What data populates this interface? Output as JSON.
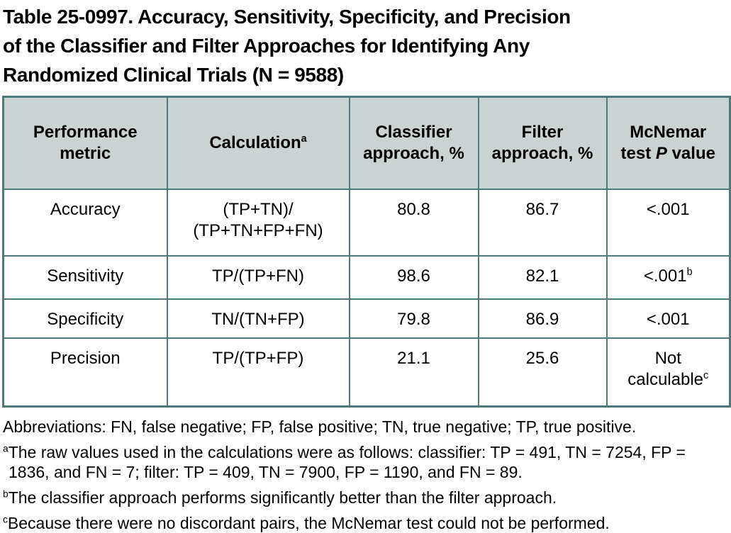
{
  "colors": {
    "border": "#4d7b7d",
    "header_bg": "#c9d3d2",
    "text": "#000000",
    "page_bg": "#ffffff"
  },
  "figure": {
    "title_lines": [
      "Table 25-0997. Accuracy, Sensitivity, Specificity, and Precision",
      "of the Classifier and Filter Approaches for Identifying Any",
      "Randomized Clinical Trials (N = 9588)"
    ]
  },
  "table": {
    "header": {
      "metric_label": "Performance metric",
      "calc_label": "Calculation",
      "calc_sup": "a",
      "classifier_label": "Classifier approach, %",
      "filter_label": "Filter approach, %",
      "p_pre": "McNemar test ",
      "p_italic": "P",
      "p_post": " value"
    },
    "rows": [
      {
        "metric": "Accuracy",
        "calculation_lines": [
          "(TP+TN)/",
          "(TP+TN+FP+FN)"
        ],
        "classifier": "80.8",
        "filter": "86.7",
        "p": "<.001",
        "p_sup": ""
      },
      {
        "metric": "Sensitivity",
        "calculation_lines": [
          "TP/(TP+FN)"
        ],
        "classifier": "98.6",
        "filter": "82.1",
        "p": "<.001",
        "p_sup": "b"
      },
      {
        "metric": "Specificity",
        "calculation_lines": [
          "TN/(TN+FP)"
        ],
        "classifier": "79.8",
        "filter": "86.9",
        "p": "<.001",
        "p_sup": ""
      },
      {
        "metric": "Precision",
        "calculation_lines": [
          "TP/(TP+FP)"
        ],
        "classifier": "21.1",
        "filter": "25.6",
        "p": "Not calculable",
        "p_sup": "c"
      }
    ]
  },
  "footnotes": [
    {
      "sup": "",
      "text": "Abbreviations: FN, false negative; FP, false positive; TN, true negative; TP, true positive."
    },
    {
      "sup": "a",
      "text": "The raw values used in the calculations were as follows: classifier: TP = 491, TN = 7254, FP = 1836, and FN = 7; filter: TP = 409, TN = 7900, FP = 1190, and FN = 89."
    },
    {
      "sup": "b",
      "text": "The classifier approach performs significantly better than the filter approach."
    },
    {
      "sup": "c",
      "text": "Because there were no discordant pairs, the McNemar test could not be performed."
    }
  ]
}
